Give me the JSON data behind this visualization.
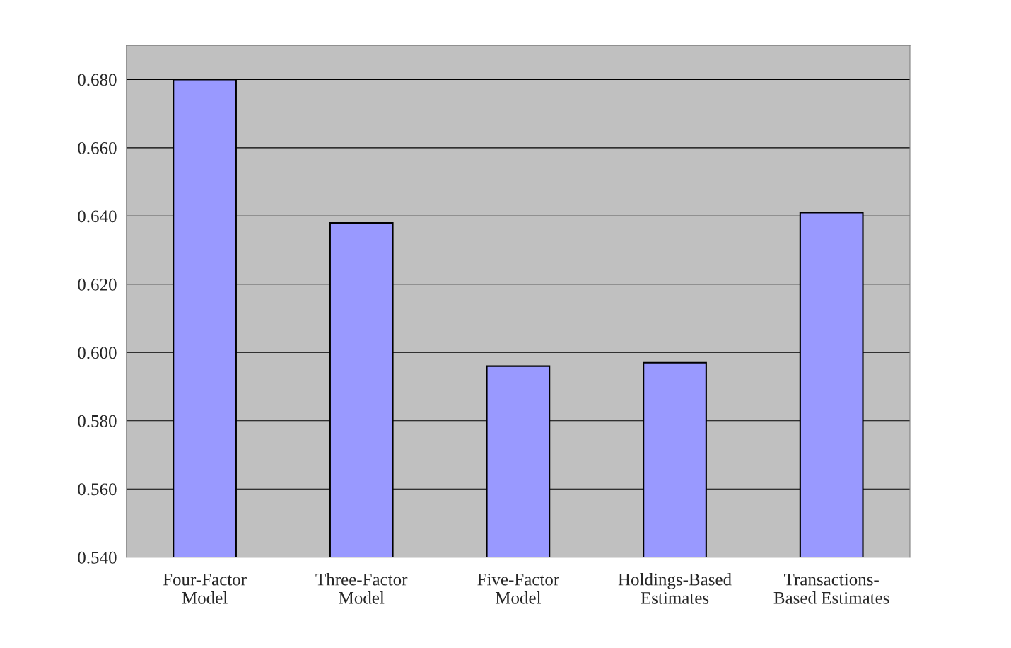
{
  "chart_data": {
    "type": "bar",
    "categories": [
      "Four-Factor\nModel",
      "Three-Factor\nModel",
      "Five-Factor\nModel",
      "Holdings-Based\nEstimates",
      "Transactions-\nBased Estimates"
    ],
    "values": [
      0.68,
      0.638,
      0.596,
      0.597,
      0.641
    ],
    "color": "#9999ff",
    "ylim": [
      0.54,
      0.69
    ],
    "yticks": [
      {
        "value": 0.54,
        "label": "0.540"
      },
      {
        "value": 0.56,
        "label": "0.560"
      },
      {
        "value": 0.58,
        "label": "0.580"
      },
      {
        "value": 0.6,
        "label": "0.600"
      },
      {
        "value": 0.62,
        "label": "0.620"
      },
      {
        "value": 0.64,
        "label": "0.640"
      },
      {
        "value": 0.66,
        "label": "0.660"
      },
      {
        "value": 0.68,
        "label": "0.680"
      }
    ],
    "grid": "y"
  }
}
